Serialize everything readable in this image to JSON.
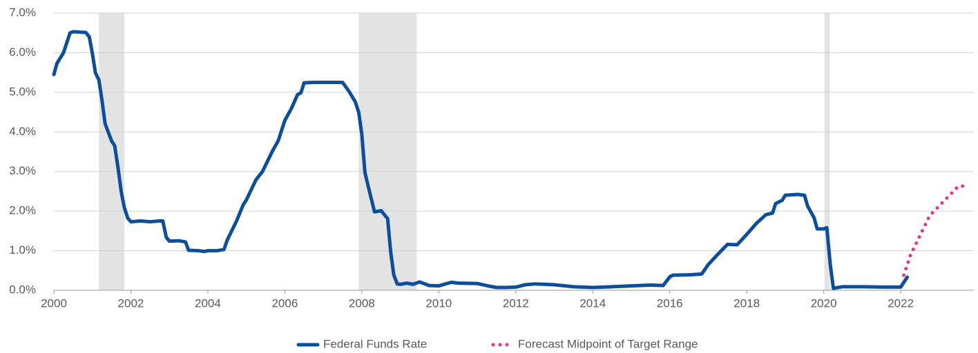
{
  "chart_data": {
    "type": "line",
    "xlim": [
      2000,
      2023.9
    ],
    "xticks": [
      2000,
      2002,
      2004,
      2006,
      2008,
      2010,
      2012,
      2014,
      2016,
      2018,
      2020,
      2022
    ],
    "ylim": [
      0,
      7
    ],
    "yticks": [
      {
        "value": 0,
        "label": "0.0%"
      },
      {
        "value": 1,
        "label": "1.0%"
      },
      {
        "value": 2,
        "label": "2.0%"
      },
      {
        "value": 3,
        "label": "3.0%"
      },
      {
        "value": 4,
        "label": "4.0%"
      },
      {
        "value": 5,
        "label": "5.0%"
      },
      {
        "value": 6,
        "label": "6.0%"
      },
      {
        "value": 7,
        "label": "7.0%"
      }
    ],
    "grid": true,
    "legend": "bottom",
    "shaded_ranges": [
      [
        2001.17,
        2001.83
      ],
      [
        2007.92,
        2009.42
      ],
      [
        2020.02,
        2020.16
      ]
    ],
    "shade_color": "#e3e3e3",
    "series": [
      {
        "name": "Federal Funds Rate",
        "color": "#0b4f9c",
        "style": "solid",
        "x": [
          2000.0,
          2000.08,
          2000.25,
          2000.42,
          2000.5,
          2000.67,
          2000.83,
          2000.92,
          2001.0,
          2001.08,
          2001.17,
          2001.25,
          2001.33,
          2001.5,
          2001.58,
          2001.67,
          2001.75,
          2001.83,
          2001.92,
          2002.0,
          2002.25,
          2002.5,
          2002.75,
          2002.83,
          2002.92,
          2003.0,
          2003.25,
          2003.42,
          2003.5,
          2003.75,
          2003.92,
          2004.0,
          2004.25,
          2004.42,
          2004.5,
          2004.75,
          2004.92,
          2005.0,
          2005.25,
          2005.42,
          2005.67,
          2005.83,
          2006.0,
          2006.17,
          2006.33,
          2006.42,
          2006.5,
          2006.75,
          2007.0,
          2007.5,
          2007.67,
          2007.83,
          2007.92,
          2008.0,
          2008.08,
          2008.17,
          2008.33,
          2008.5,
          2008.67,
          2008.75,
          2008.83,
          2008.92,
          2009.0,
          2009.17,
          2009.33,
          2009.5,
          2009.75,
          2010.0,
          2010.17,
          2010.33,
          2010.5,
          2011.0,
          2011.33,
          2011.5,
          2011.75,
          2012.0,
          2012.25,
          2012.5,
          2012.75,
          2013.0,
          2013.5,
          2014.0,
          2014.5,
          2015.0,
          2015.5,
          2015.83,
          2016.0,
          2016.08,
          2016.5,
          2016.83,
          2017.0,
          2017.25,
          2017.5,
          2017.75,
          2018.0,
          2018.25,
          2018.5,
          2018.67,
          2018.75,
          2018.92,
          2019.0,
          2019.33,
          2019.5,
          2019.58,
          2019.75,
          2019.83,
          2020.0,
          2020.08,
          2020.17,
          2020.25,
          2020.5,
          2021.0,
          2021.5,
          2021.75,
          2022.0,
          2022.08,
          2022.17
        ],
        "values": [
          5.45,
          5.73,
          6.0,
          6.5,
          6.53,
          6.52,
          6.51,
          6.4,
          5.98,
          5.49,
          5.31,
          4.8,
          4.21,
          3.77,
          3.65,
          3.07,
          2.49,
          2.09,
          1.82,
          1.73,
          1.75,
          1.73,
          1.75,
          1.75,
          1.34,
          1.24,
          1.25,
          1.22,
          1.01,
          1.0,
          0.98,
          1.0,
          1.0,
          1.03,
          1.26,
          1.76,
          2.16,
          2.28,
          2.79,
          3.0,
          3.5,
          3.78,
          4.29,
          4.59,
          4.94,
          4.99,
          5.24,
          5.25,
          5.25,
          5.25,
          5.02,
          4.76,
          4.49,
          3.94,
          2.98,
          2.61,
          1.98,
          2.01,
          1.81,
          0.97,
          0.39,
          0.16,
          0.15,
          0.18,
          0.15,
          0.21,
          0.12,
          0.11,
          0.16,
          0.2,
          0.18,
          0.17,
          0.1,
          0.07,
          0.07,
          0.08,
          0.14,
          0.16,
          0.15,
          0.14,
          0.09,
          0.07,
          0.09,
          0.11,
          0.13,
          0.12,
          0.34,
          0.38,
          0.39,
          0.41,
          0.65,
          0.91,
          1.16,
          1.15,
          1.41,
          1.69,
          1.91,
          1.95,
          2.19,
          2.27,
          2.4,
          2.42,
          2.4,
          2.13,
          1.83,
          1.55,
          1.55,
          1.58,
          0.65,
          0.05,
          0.09,
          0.09,
          0.08,
          0.08,
          0.08,
          0.2,
          0.33
        ]
      },
      {
        "name": "Forecast Midpoint of Target Range",
        "color": "#e8338a",
        "style": "dotted",
        "x": [
          2022.08,
          2022.25,
          2022.5,
          2022.75,
          2023.0,
          2023.25,
          2023.5,
          2023.75
        ],
        "values": [
          0.38,
          0.88,
          1.38,
          1.88,
          2.13,
          2.38,
          2.63,
          2.63
        ]
      }
    ]
  }
}
